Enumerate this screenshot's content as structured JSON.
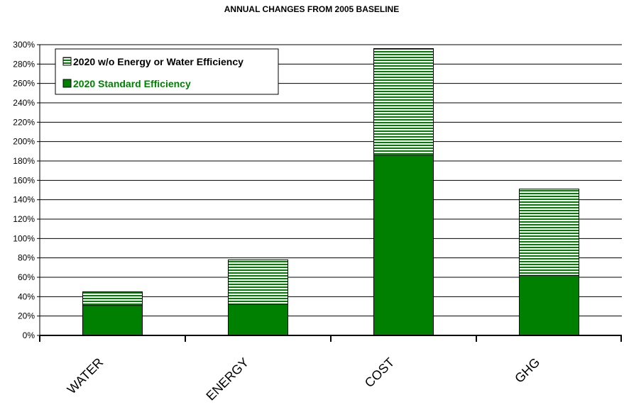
{
  "chart_data": {
    "type": "bar",
    "stacked": true,
    "title": "ANNUAL CHANGES FROM 2005 BASELINE",
    "categories": [
      "WATER",
      "ENERGY",
      "COST",
      "GHG"
    ],
    "series": [
      {
        "name": "2020 Standard Efficiency",
        "values": [
          31,
          32,
          186,
          62
        ],
        "color": "#008000",
        "pattern": "solid"
      },
      {
        "name": "2020 w/o Energy or Water Efficiency",
        "values": [
          14,
          46,
          110,
          89
        ],
        "color": "#008000",
        "pattern": "horizontal-stripes"
      }
    ],
    "ylim": [
      0,
      300
    ],
    "ystep": 20,
    "ytick_suffix": "%",
    "grid": true,
    "legend_position": "top-left",
    "legend_order": [
      1,
      0
    ],
    "legend_label_colors": [
      "#000000",
      "#008000"
    ]
  }
}
